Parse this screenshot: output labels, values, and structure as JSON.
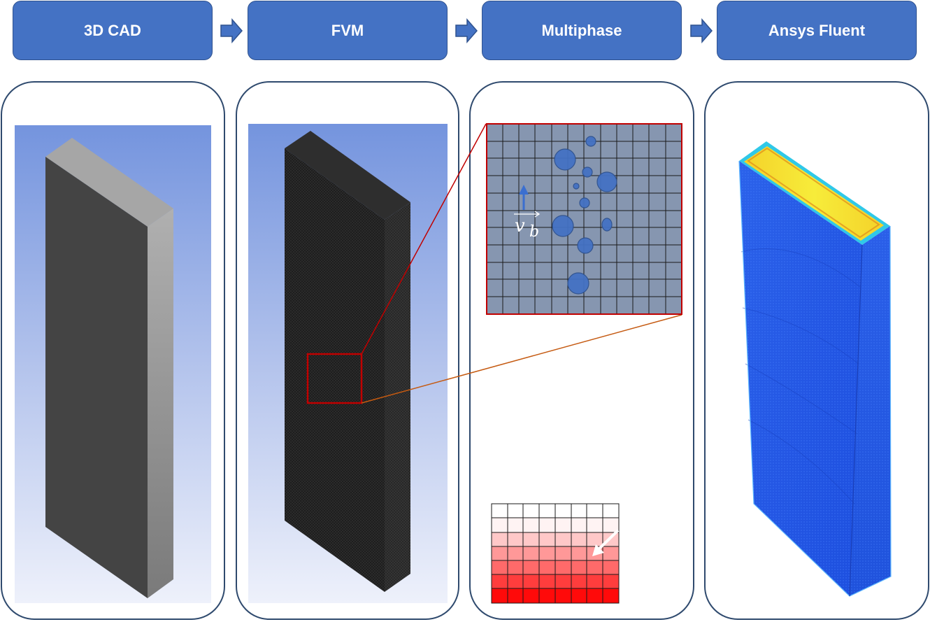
{
  "steps": [
    {
      "label": "3D CAD"
    },
    {
      "label": "FVM"
    },
    {
      "label": "Multiphase"
    },
    {
      "label": "Ansys Fluent"
    }
  ],
  "annotations": {
    "velocity_symbol": "v",
    "velocity_subscript": "b"
  },
  "colors": {
    "step_fill": "#4472c4",
    "step_border": "#2f528f",
    "panel_border": "#2f4a6e",
    "zoom_line": "#c0504d",
    "bubble": "#4472c4",
    "contour_low": "#1a4fe0",
    "contour_high": "#f2e63a"
  }
}
